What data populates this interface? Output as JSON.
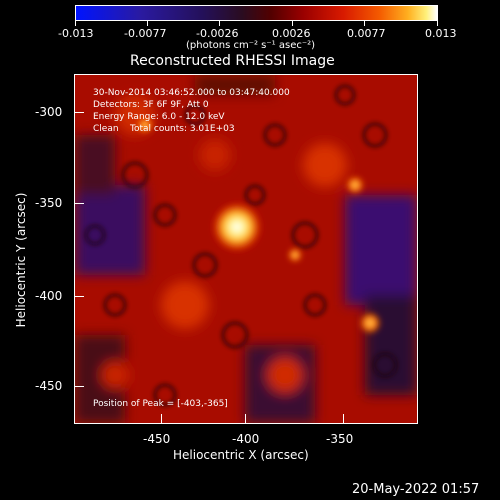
{
  "colorbar": {
    "labels": [
      "-0.013",
      "-0.0077",
      "-0.0026",
      "0.0026",
      "0.0077",
      "0.013"
    ],
    "units": "(photons cm⁻² s⁻¹ asec⁻²)"
  },
  "title": "Reconstructed RHESSI Image",
  "annotations": {
    "time": "30-Nov-2014 03:46:52.000 to 03:47:40.000",
    "detectors": "Detectors: 3F 6F 9F, Att 0",
    "energy": "Energy Range: 6.0 - 12.0 keV",
    "clean": "Clean    Total counts: 3.01E+03",
    "peak": "Position of Peak = [-403,-365]"
  },
  "axes": {
    "xlabel": "Heliocentric X (arcsec)",
    "ylabel": "Heliocentric Y (arcsec)",
    "xticks": [
      "-450",
      "-400",
      "-350"
    ],
    "yticks": [
      "-300",
      "-350",
      "-400",
      "-450"
    ]
  },
  "timestamp": "20-May-2022 01:57",
  "colors": {
    "background": "#000000",
    "foreground": "#ffffff",
    "colormap": [
      "#0014ff",
      "#24105a",
      "#520000",
      "#d81a00",
      "#ffb020",
      "#ffffff"
    ]
  }
}
